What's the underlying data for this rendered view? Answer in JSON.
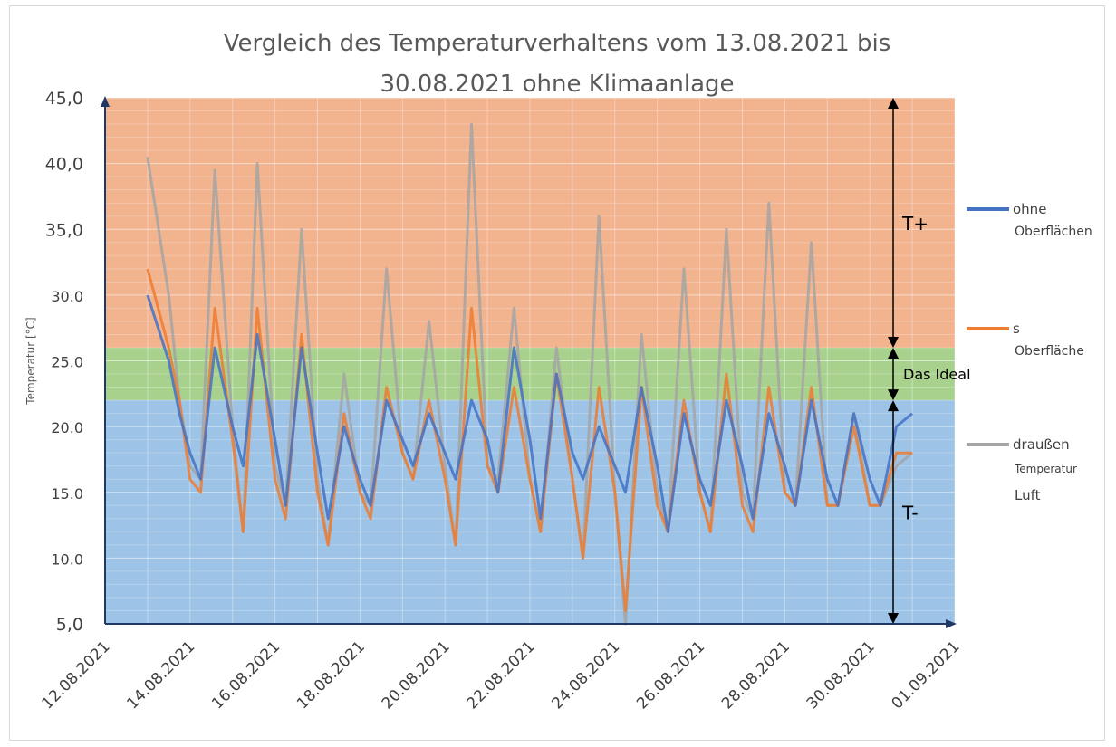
{
  "chart_data": {
    "type": "line",
    "title_lines": [
      "Vergleich des Temperaturverhaltens vom 13.08.2021 bis",
      "30.08.2021 ohne Klimaanlage"
    ],
    "ylabel": "Temperatur [°C]",
    "xlabel": "",
    "ylim": [
      5,
      45
    ],
    "yticks": [
      "45,0",
      "40,0",
      "35,0",
      "30.0",
      "25.0",
      "20.0",
      "15.0",
      "10.0",
      "5,0"
    ],
    "ytick_values": [
      45,
      40,
      35,
      30,
      25,
      20,
      15,
      10,
      5
    ],
    "xlim": [
      "2021-08-12",
      "2021-09-01"
    ],
    "xticks": [
      "12.08.2021",
      "14.08.2021",
      "16.08.2021",
      "18.08.2021",
      "20.08.2021",
      "22.08.2021",
      "24.08.2021",
      "26.08.2021",
      "28.08.2021",
      "30.08.2021",
      "01.09.2021"
    ],
    "xtick_dates": [
      "2021-08-12",
      "2021-08-14",
      "2021-08-16",
      "2021-08-18",
      "2021-08-20",
      "2021-08-22",
      "2021-08-24",
      "2021-08-26",
      "2021-08-28",
      "2021-08-30",
      "2021-09-01"
    ],
    "grid": true,
    "legend_position": "right",
    "bands": [
      {
        "label": "T+",
        "from": 26,
        "to": 45,
        "color": "#f2b38f"
      },
      {
        "label": "Das Ideal",
        "from": 22,
        "to": 26,
        "color": "#a9d18e"
      },
      {
        "label": "T-",
        "from": 5,
        "to": 22,
        "color": "#9dc3e6"
      }
    ],
    "legend": [
      {
        "lines": [
          "ohne",
          "Oberflächen"
        ],
        "color": "#4472c4"
      },
      {
        "lines": [
          "s",
          "Oberfläche"
        ],
        "color": "#ed7d31"
      },
      {
        "lines": [
          "draußen",
          "Temperatur",
          "Luft"
        ],
        "color": "#a5a5a5"
      }
    ],
    "series": [
      {
        "color": "#4472c4",
        "x": [
          "2021-08-13",
          "2021-08-13 12:00",
          "2021-08-13 18:00",
          "2021-08-14",
          "2021-08-14 06:00",
          "2021-08-14 14:00",
          "2021-08-15",
          "2021-08-15 06:00",
          "2021-08-15 14:00",
          "2021-08-16",
          "2021-08-16 06:00",
          "2021-08-16 15:00",
          "2021-08-17",
          "2021-08-17 06:00",
          "2021-08-17 15:00",
          "2021-08-18",
          "2021-08-18 06:00",
          "2021-08-18 15:00",
          "2021-08-19",
          "2021-08-19 06:00",
          "2021-08-19 15:00",
          "2021-08-20",
          "2021-08-20 06:00",
          "2021-08-20 15:00",
          "2021-08-21",
          "2021-08-21 06:00",
          "2021-08-21 15:00",
          "2021-08-22",
          "2021-08-22 06:00",
          "2021-08-22 15:00",
          "2021-08-23",
          "2021-08-23 06:00",
          "2021-08-23 15:00",
          "2021-08-24",
          "2021-08-24 06:00",
          "2021-08-24 15:00",
          "2021-08-25",
          "2021-08-25 06:00",
          "2021-08-25 15:00",
          "2021-08-26",
          "2021-08-26 06:00",
          "2021-08-26 15:00",
          "2021-08-27",
          "2021-08-27 06:00",
          "2021-08-27 15:00",
          "2021-08-28",
          "2021-08-28 06:00",
          "2021-08-28 15:00",
          "2021-08-29",
          "2021-08-29 06:00",
          "2021-08-29 15:00",
          "2021-08-30",
          "2021-08-30 06:00",
          "2021-08-30 15:00",
          "2021-08-31"
        ],
        "values": [
          30,
          25,
          21,
          18,
          16,
          26,
          20,
          17,
          27,
          19,
          14,
          26,
          18,
          13,
          20,
          16,
          14,
          22,
          19,
          17,
          21,
          18,
          16,
          22,
          19,
          15,
          26,
          19,
          13,
          24,
          18,
          16,
          20,
          17,
          15,
          23,
          17,
          12,
          21,
          16,
          14,
          22,
          17,
          13,
          21,
          17,
          14,
          22,
          16,
          14,
          21,
          16,
          14,
          20,
          21
        ]
      },
      {
        "color": "#ed7d31",
        "x": [
          "2021-08-13",
          "2021-08-13 12:00",
          "2021-08-13 18:00",
          "2021-08-14",
          "2021-08-14 06:00",
          "2021-08-14 14:00",
          "2021-08-15",
          "2021-08-15 06:00",
          "2021-08-15 14:00",
          "2021-08-16",
          "2021-08-16 06:00",
          "2021-08-16 15:00",
          "2021-08-17",
          "2021-08-17 06:00",
          "2021-08-17 15:00",
          "2021-08-18",
          "2021-08-18 06:00",
          "2021-08-18 15:00",
          "2021-08-19",
          "2021-08-19 06:00",
          "2021-08-19 15:00",
          "2021-08-20",
          "2021-08-20 06:00",
          "2021-08-20 15:00",
          "2021-08-21",
          "2021-08-21 06:00",
          "2021-08-21 15:00",
          "2021-08-22",
          "2021-08-22 06:00",
          "2021-08-22 15:00",
          "2021-08-23",
          "2021-08-23 06:00",
          "2021-08-23 15:00",
          "2021-08-24",
          "2021-08-24 06:00",
          "2021-08-24 15:00",
          "2021-08-25",
          "2021-08-25 06:00",
          "2021-08-25 15:00",
          "2021-08-26",
          "2021-08-26 06:00",
          "2021-08-26 15:00",
          "2021-08-27",
          "2021-08-27 06:00",
          "2021-08-27 15:00",
          "2021-08-28",
          "2021-08-28 06:00",
          "2021-08-28 15:00",
          "2021-08-29",
          "2021-08-29 06:00",
          "2021-08-29 15:00",
          "2021-08-30",
          "2021-08-30 06:00",
          "2021-08-30 15:00",
          "2021-08-31"
        ],
        "values": [
          32,
          26,
          22,
          16,
          15,
          29,
          19,
          12,
          29,
          16,
          13,
          27,
          15,
          11,
          21,
          15,
          13,
          23,
          18,
          16,
          22,
          16,
          11,
          29,
          17,
          15,
          23,
          16,
          12,
          24,
          16,
          10,
          23,
          15,
          6,
          23,
          14,
          12,
          22,
          15,
          12,
          24,
          14,
          12,
          23,
          15,
          14,
          23,
          14,
          14,
          20,
          14,
          14,
          18,
          18
        ]
      },
      {
        "color": "#a5a5a5",
        "x": [
          "2021-08-13",
          "2021-08-13 12:00",
          "2021-08-13 18:00",
          "2021-08-14",
          "2021-08-14 06:00",
          "2021-08-14 14:00",
          "2021-08-15",
          "2021-08-15 06:00",
          "2021-08-15 14:00",
          "2021-08-16",
          "2021-08-16 06:00",
          "2021-08-16 15:00",
          "2021-08-17",
          "2021-08-17 06:00",
          "2021-08-17 15:00",
          "2021-08-18",
          "2021-08-18 06:00",
          "2021-08-18 15:00",
          "2021-08-19",
          "2021-08-19 06:00",
          "2021-08-19 15:00",
          "2021-08-20",
          "2021-08-20 06:00",
          "2021-08-20 15:00",
          "2021-08-21",
          "2021-08-21 06:00",
          "2021-08-21 15:00",
          "2021-08-22",
          "2021-08-22 06:00",
          "2021-08-22 15:00",
          "2021-08-23",
          "2021-08-23 06:00",
          "2021-08-23 15:00",
          "2021-08-24",
          "2021-08-24 06:00",
          "2021-08-24 15:00",
          "2021-08-25",
          "2021-08-25 06:00",
          "2021-08-25 15:00",
          "2021-08-26",
          "2021-08-26 06:00",
          "2021-08-26 15:00",
          "2021-08-27",
          "2021-08-27 06:00",
          "2021-08-27 15:00",
          "2021-08-28",
          "2021-08-28 06:00",
          "2021-08-28 15:00",
          "2021-08-29",
          "2021-08-29 06:00",
          "2021-08-29 15:00",
          "2021-08-30",
          "2021-08-30 06:00",
          "2021-08-30 15:00",
          "2021-08-31"
        ],
        "values": [
          40.5,
          30,
          22,
          17,
          16,
          39.5,
          20,
          12,
          40,
          17,
          14,
          35,
          16,
          11,
          24,
          15,
          14,
          32,
          18,
          16,
          28,
          17,
          11,
          43,
          17,
          16,
          29,
          16,
          12,
          26,
          16,
          10,
          36,
          15,
          5,
          27,
          15,
          12,
          32,
          15,
          12,
          35,
          15,
          13,
          37,
          15,
          14,
          34,
          14,
          14,
          21,
          14,
          14,
          17,
          18
        ]
      }
    ]
  }
}
